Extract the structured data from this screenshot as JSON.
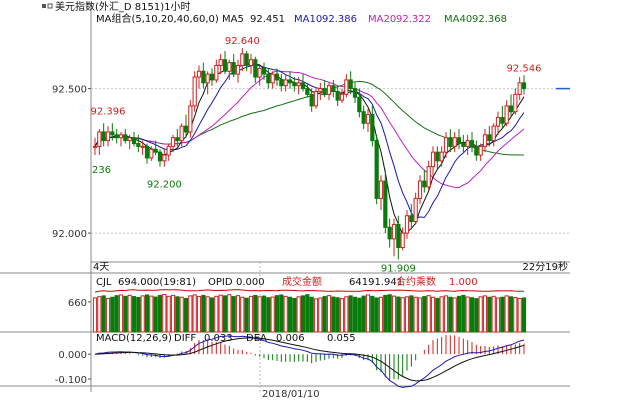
{
  "chart_data": {
    "type": "candlestick",
    "title": "美元指数(外汇_D 8151)1小时",
    "colors": {
      "up": "#d42020",
      "down": "#0a7a0a",
      "grid": "#c8c8c8",
      "ma5": "#111111",
      "ma10": "#1a1aa8",
      "ma20": "#c020c0",
      "ma40": "#157015",
      "volume_line": "#d40000",
      "macd_diff": "#1a1aa8",
      "macd_dea": "#111111",
      "panel_border": "#888888",
      "last_price_marker": "#2060d0"
    },
    "main": {
      "legend_title": "MA组合(5,10,20,40,60,0)",
      "legend": [
        {
          "label": "MA5",
          "value": "92.451",
          "color": "#111111"
        },
        {
          "label": "MA10",
          "value": "92.386",
          "color": "#1a1aa8"
        },
        {
          "label": "MA20",
          "value": "92.322",
          "color": "#c020c0"
        },
        {
          "label": "MA40",
          "value": "92.368",
          "color": "#157015"
        }
      ],
      "ylim": [
        91.9,
        92.72
      ],
      "ytick_values": [
        92.0,
        92.5
      ],
      "ytick_labels": [
        "92.000",
        "92.500"
      ],
      "annotations": [
        {
          "text": "92.640",
          "x": 34,
          "y": 92.64,
          "color": "#d42020"
        },
        {
          "text": "92.396",
          "x": 3,
          "y": 92.396,
          "color": "#d42020"
        },
        {
          "text": "92.200",
          "x": 16,
          "y": 92.2,
          "color": "#0a7a0a"
        },
        {
          "text": "91.909",
          "x": 70,
          "y": 91.909,
          "color": "#0a7a0a"
        },
        {
          "text": "92.546",
          "x": 99,
          "y": 92.546,
          "color": "#d42020"
        },
        {
          "text": "236",
          "x": 0,
          "y": 92.25,
          "color": "#0a7a0a"
        }
      ],
      "left_caption": "4天",
      "right_caption": "22分19秒",
      "last_price": 92.5,
      "candles": [
        [
          92.3,
          92.33,
          92.27,
          92.3
        ],
        [
          92.3,
          92.36,
          92.27,
          92.35
        ],
        [
          92.35,
          92.38,
          92.3,
          92.32
        ],
        [
          92.32,
          92.37,
          92.3,
          92.35
        ],
        [
          92.35,
          92.38,
          92.32,
          92.34
        ],
        [
          92.34,
          92.36,
          92.31,
          92.33
        ],
        [
          92.33,
          92.35,
          92.3,
          92.34
        ],
        [
          92.34,
          92.36,
          92.31,
          92.32
        ],
        [
          92.32,
          92.34,
          92.29,
          92.33
        ],
        [
          92.33,
          92.35,
          92.3,
          92.31
        ],
        [
          92.31,
          92.34,
          92.28,
          92.3
        ],
        [
          92.3,
          92.32,
          92.27,
          92.3
        ],
        [
          92.3,
          92.31,
          92.24,
          92.26
        ],
        [
          92.26,
          92.3,
          92.25,
          92.29
        ],
        [
          92.29,
          92.32,
          92.27,
          92.28
        ],
        [
          92.28,
          92.29,
          92.23,
          92.25
        ],
        [
          92.25,
          92.29,
          92.23,
          92.27
        ],
        [
          92.27,
          92.31,
          92.25,
          92.3
        ],
        [
          92.3,
          92.34,
          92.28,
          92.33
        ],
        [
          92.33,
          92.36,
          92.3,
          92.32
        ],
        [
          92.32,
          92.38,
          92.3,
          92.37
        ],
        [
          92.37,
          92.41,
          92.33,
          92.35
        ],
        [
          92.35,
          92.46,
          92.33,
          92.44
        ],
        [
          92.44,
          92.56,
          92.42,
          92.54
        ],
        [
          92.54,
          92.58,
          92.5,
          92.56
        ],
        [
          92.56,
          92.59,
          92.5,
          92.52
        ],
        [
          92.52,
          92.56,
          92.48,
          92.55
        ],
        [
          92.55,
          92.57,
          92.51,
          92.53
        ],
        [
          92.53,
          92.6,
          92.52,
          92.58
        ],
        [
          92.58,
          92.62,
          92.55,
          92.6
        ],
        [
          92.6,
          92.63,
          92.55,
          92.56
        ],
        [
          92.56,
          92.6,
          92.53,
          92.59
        ],
        [
          92.59,
          92.62,
          92.54,
          92.55
        ],
        [
          92.55,
          92.6,
          92.52,
          92.58
        ],
        [
          92.58,
          92.64,
          92.56,
          92.62
        ],
        [
          92.62,
          92.63,
          92.56,
          92.58
        ],
        [
          92.58,
          92.62,
          92.55,
          92.6
        ],
        [
          92.6,
          92.61,
          92.52,
          92.54
        ],
        [
          92.54,
          92.58,
          92.51,
          92.57
        ],
        [
          92.57,
          92.59,
          92.53,
          92.55
        ],
        [
          92.55,
          92.57,
          92.5,
          92.52
        ],
        [
          92.52,
          92.56,
          92.5,
          92.55
        ],
        [
          92.55,
          92.57,
          92.51,
          92.53
        ],
        [
          92.53,
          92.55,
          92.49,
          92.51
        ],
        [
          92.51,
          92.55,
          92.49,
          92.53
        ],
        [
          92.53,
          92.56,
          92.5,
          92.52
        ],
        [
          92.52,
          92.54,
          92.49,
          92.51
        ],
        [
          92.51,
          92.54,
          92.48,
          92.52
        ],
        [
          92.52,
          92.55,
          92.49,
          92.5
        ],
        [
          92.5,
          92.52,
          92.47,
          92.48
        ],
        [
          92.48,
          92.5,
          92.42,
          92.44
        ],
        [
          92.44,
          92.5,
          92.43,
          92.49
        ],
        [
          92.49,
          92.52,
          92.46,
          92.5
        ],
        [
          92.5,
          92.53,
          92.47,
          92.48
        ],
        [
          92.48,
          92.52,
          92.46,
          92.51
        ],
        [
          92.51,
          92.53,
          92.47,
          92.49
        ],
        [
          92.49,
          92.51,
          92.44,
          92.46
        ],
        [
          92.46,
          92.5,
          92.45,
          92.48
        ],
        [
          92.48,
          92.55,
          92.47,
          92.53
        ],
        [
          92.53,
          92.56,
          92.48,
          92.5
        ],
        [
          92.5,
          92.52,
          92.45,
          92.47
        ],
        [
          92.47,
          92.5,
          92.4,
          92.42
        ],
        [
          92.42,
          92.44,
          92.36,
          92.38
        ],
        [
          92.38,
          92.43,
          92.35,
          92.41
        ],
        [
          92.41,
          92.44,
          92.3,
          92.32
        ],
        [
          92.32,
          92.34,
          92.1,
          92.12
        ],
        [
          92.12,
          92.2,
          92.08,
          92.18
        ],
        [
          92.18,
          92.22,
          92.0,
          92.02
        ],
        [
          92.02,
          92.05,
          91.95,
          91.98
        ],
        [
          91.98,
          92.05,
          91.92,
          92.03
        ],
        [
          92.03,
          92.06,
          91.909,
          91.95
        ],
        [
          91.95,
          92.02,
          91.94,
          92.0
        ],
        [
          92.0,
          92.08,
          91.98,
          92.06
        ],
        [
          92.06,
          92.1,
          92.02,
          92.04
        ],
        [
          92.04,
          92.14,
          92.03,
          92.12
        ],
        [
          92.12,
          92.2,
          92.1,
          92.18
        ],
        [
          92.18,
          92.22,
          92.14,
          92.16
        ],
        [
          92.16,
          92.25,
          92.15,
          92.23
        ],
        [
          92.23,
          92.3,
          92.2,
          92.28
        ],
        [
          92.28,
          92.3,
          92.22,
          92.25
        ],
        [
          92.25,
          92.3,
          92.23,
          92.28
        ],
        [
          92.28,
          92.35,
          92.26,
          92.33
        ],
        [
          92.33,
          92.36,
          92.28,
          92.3
        ],
        [
          92.3,
          92.35,
          92.28,
          92.33
        ],
        [
          92.33,
          92.36,
          92.29,
          92.31
        ],
        [
          92.31,
          92.34,
          92.28,
          92.3
        ],
        [
          92.3,
          92.34,
          92.27,
          92.32
        ],
        [
          92.32,
          92.35,
          92.28,
          92.3
        ],
        [
          92.3,
          92.32,
          92.25,
          92.27
        ],
        [
          92.27,
          92.31,
          92.25,
          92.3
        ],
        [
          92.3,
          92.36,
          92.28,
          92.34
        ],
        [
          92.34,
          92.37,
          92.3,
          92.32
        ],
        [
          92.32,
          92.38,
          92.3,
          92.37
        ],
        [
          92.37,
          92.42,
          92.34,
          92.4
        ],
        [
          92.4,
          92.44,
          92.36,
          92.38
        ],
        [
          92.38,
          92.46,
          92.37,
          92.44
        ],
        [
          92.44,
          92.48,
          92.4,
          92.42
        ],
        [
          92.42,
          92.5,
          92.41,
          92.48
        ],
        [
          92.48,
          92.54,
          92.46,
          92.52
        ],
        [
          92.52,
          92.546,
          92.48,
          92.5
        ]
      ]
    },
    "volume": {
      "legend": [
        {
          "text": "CJL",
          "color": "#111111"
        },
        {
          "text": "694.000(19:81)",
          "color": "#111111"
        },
        {
          "text": "OPID",
          "color": "#111111"
        },
        {
          "text": "0.000",
          "color": "#111111"
        },
        {
          "text": "成交金额",
          "color": "#d42020"
        },
        {
          "text": "64191.941",
          "color": "#111111"
        },
        {
          "text": "合约乘数",
          "color": "#d42020"
        },
        {
          "text": "1.000",
          "color": "#d42020"
        }
      ],
      "ylim": [
        400,
        780
      ],
      "ytick_values": [
        660
      ],
      "ytick_labels": [
        "660"
      ],
      "values": [
        694,
        705,
        712,
        690,
        700,
        714,
        720,
        708,
        716,
        706,
        698,
        712,
        720,
        710,
        702,
        716,
        724,
        708,
        716,
        704,
        700,
        690,
        712,
        720,
        706,
        716,
        704,
        694,
        708,
        718,
        712,
        722,
        706,
        714,
        700,
        692,
        708,
        716,
        704,
        710,
        696,
        702,
        714,
        720,
        708,
        700,
        690,
        704,
        712,
        722,
        700,
        686,
        694,
        706,
        714,
        702,
        696,
        688,
        704,
        712,
        700,
        692,
        710,
        720,
        708,
        694,
        700,
        716,
        722,
        710,
        702,
        696,
        704,
        712,
        700,
        694,
        706,
        714,
        700,
        690,
        704,
        712,
        700,
        694,
        708,
        716,
        702,
        696,
        688,
        704,
        712,
        700,
        708,
        694,
        700,
        712,
        704,
        698,
        690,
        694
      ]
    },
    "macd": {
      "legend": [
        {
          "text": "MACD(12,26,9)",
          "color": "#111111"
        },
        {
          "text": "DIFF",
          "color": "#111111"
        },
        {
          "text": "0.033",
          "color": "#111111"
        },
        {
          "text": "DEA",
          "color": "#111111"
        },
        {
          "text": "0.006",
          "color": "#111111"
        },
        {
          "text": "0.055",
          "color": "#111111"
        }
      ],
      "ylim": [
        -0.12,
        0.045
      ],
      "ytick_values": [
        0.0,
        -0.1
      ],
      "ytick_labels": [
        "0.000",
        "-0.100"
      ]
    },
    "x_axis": {
      "label": "2018/01/10"
    }
  }
}
